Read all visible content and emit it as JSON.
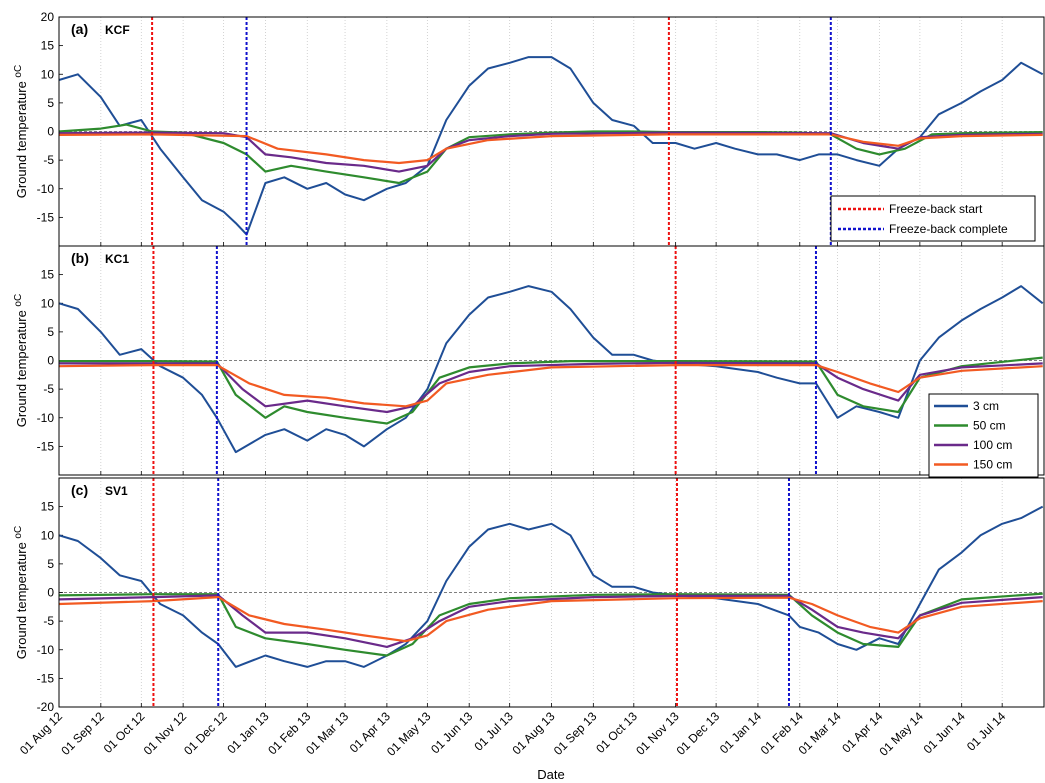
{
  "xlabel": "Date",
  "ylabel": "Ground temperature",
  "ylabel_unit": "oC",
  "x_tick_labels": [
    "01 Aug 12",
    "01 Sep 12",
    "01 Oct 12",
    "01 Nov 12",
    "01 Dec 12",
    "01 Jan 13",
    "01 Feb 13",
    "01 Mar 13",
    "01 Apr 13",
    "01 May 13",
    "01 Jun 13",
    "01 Jul 13",
    "01 Aug 13",
    "01 Sep 13",
    "01 Oct 13",
    "01 Nov 13",
    "01 Dec 13",
    "01 Jan 14",
    "01 Feb 14",
    "01 Mar 14",
    "01 Apr 14",
    "01 May 14",
    "01 Jun 14",
    "01 Jul 14"
  ],
  "legends": {
    "freeze": [
      "Freeze-back start",
      "Freeze-back complete"
    ],
    "depth": [
      "3 cm",
      "50 cm",
      "100 cm",
      "150 cm"
    ]
  },
  "colors": {
    "d3": "#1f4e96",
    "d50": "#2e8b2e",
    "d100": "#6a2a8a",
    "d150": "#f25a22",
    "start": "#ee1111",
    "complete": "#1111cc"
  },
  "chart_data": [
    {
      "type": "line",
      "panel": "(a)",
      "site": "KCF",
      "x_unit": "date",
      "ylim": [
        -20,
        20
      ],
      "yticks": [
        -15,
        -10,
        -5,
        0,
        5,
        10,
        15,
        20
      ],
      "freeze_back_start": [
        "2012-10-09",
        "2013-10-27"
      ],
      "freeze_back_complete": [
        "2012-12-18",
        "2014-02-24"
      ],
      "series": [
        {
          "name": "3 cm",
          "x": [
            "2012-08-01",
            "2012-08-15",
            "2012-09-01",
            "2012-09-15",
            "2012-10-01",
            "2012-10-15",
            "2012-11-01",
            "2012-11-15",
            "2012-12-01",
            "2012-12-10",
            "2012-12-18",
            "2013-01-01",
            "2013-01-15",
            "2013-02-01",
            "2013-02-15",
            "2013-03-01",
            "2013-03-15",
            "2013-04-01",
            "2013-04-15",
            "2013-05-01",
            "2013-05-15",
            "2013-06-01",
            "2013-06-15",
            "2013-07-01",
            "2013-07-15",
            "2013-08-01",
            "2013-08-15",
            "2013-09-01",
            "2013-09-15",
            "2013-10-01",
            "2013-10-15",
            "2013-11-01",
            "2013-11-15",
            "2013-12-01",
            "2013-12-15",
            "2014-01-01",
            "2014-01-15",
            "2014-02-01",
            "2014-02-15",
            "2014-03-01",
            "2014-03-15",
            "2014-04-01",
            "2014-04-15",
            "2014-05-01",
            "2014-05-15",
            "2014-06-01",
            "2014-06-15",
            "2014-07-01",
            "2014-07-15",
            "2014-07-31"
          ],
          "y": [
            9,
            10,
            6,
            1,
            2,
            -3,
            -8,
            -12,
            -14,
            -16,
            -18,
            -9,
            -8,
            -10,
            -9,
            -11,
            -12,
            -10,
            -9,
            -6,
            2,
            8,
            11,
            12,
            13,
            13,
            11,
            5,
            2,
            1,
            -2,
            -2,
            -3,
            -2,
            -3,
            -4,
            -4,
            -5,
            -4,
            -4,
            -5,
            -6,
            -3,
            -1,
            3,
            5,
            7,
            9,
            12,
            10
          ]
        },
        {
          "name": "50 cm",
          "x": [
            "2012-08-01",
            "2012-09-01",
            "2012-09-20",
            "2012-10-09",
            "2012-11-01",
            "2012-12-01",
            "2012-12-18",
            "2013-01-01",
            "2013-01-20",
            "2013-02-15",
            "2013-03-15",
            "2013-04-10",
            "2013-05-01",
            "2013-05-15",
            "2013-06-01",
            "2013-07-01",
            "2013-08-01",
            "2013-09-01",
            "2013-10-01",
            "2013-10-27",
            "2013-12-01",
            "2014-01-01",
            "2014-02-01",
            "2014-02-24",
            "2014-03-15",
            "2014-04-01",
            "2014-04-20",
            "2014-05-10",
            "2014-06-01",
            "2014-07-01",
            "2014-07-31"
          ],
          "y": [
            0,
            0.5,
            1.2,
            0,
            -0.2,
            -2,
            -4,
            -7,
            -6,
            -7,
            -8,
            -9,
            -7,
            -3,
            -1,
            -0.5,
            -0.2,
            0,
            0,
            -0.1,
            -0.1,
            -0.1,
            -0.2,
            -0.5,
            -3,
            -4,
            -3,
            -0.5,
            -0.3,
            -0.2,
            -0.1
          ]
        },
        {
          "name": "100 cm",
          "x": [
            "2012-08-01",
            "2012-10-09",
            "2012-12-01",
            "2012-12-18",
            "2013-01-01",
            "2013-01-20",
            "2013-02-15",
            "2013-03-15",
            "2013-04-10",
            "2013-05-01",
            "2013-05-15",
            "2013-06-01",
            "2013-07-01",
            "2013-08-01",
            "2013-10-27",
            "2014-02-24",
            "2014-03-20",
            "2014-04-15",
            "2014-05-01",
            "2014-06-01",
            "2014-07-31"
          ],
          "y": [
            -0.3,
            -0.2,
            -0.3,
            -1,
            -4,
            -4.5,
            -5.5,
            -6,
            -7,
            -6,
            -3,
            -1.5,
            -0.8,
            -0.4,
            -0.2,
            -0.3,
            -2,
            -3,
            -1,
            -0.6,
            -0.4
          ]
        },
        {
          "name": "150 cm",
          "x": [
            "2012-08-01",
            "2012-10-09",
            "2012-12-18",
            "2013-01-10",
            "2013-02-15",
            "2013-03-15",
            "2013-04-10",
            "2013-05-01",
            "2013-05-15",
            "2013-06-15",
            "2013-08-01",
            "2013-10-27",
            "2014-02-24",
            "2014-03-20",
            "2014-04-15",
            "2014-05-01",
            "2014-06-01",
            "2014-07-31"
          ],
          "y": [
            -0.6,
            -0.5,
            -0.8,
            -3,
            -4,
            -5,
            -5.5,
            -5,
            -3,
            -1.5,
            -0.8,
            -0.5,
            -0.5,
            -1.8,
            -2.5,
            -1.2,
            -0.8,
            -0.6
          ]
        }
      ]
    },
    {
      "type": "line",
      "panel": "(b)",
      "site": "KC1",
      "x_unit": "date",
      "ylim": [
        -20,
        20
      ],
      "yticks": [
        -15,
        -10,
        -5,
        0,
        5,
        10,
        15
      ],
      "freeze_back_start": [
        "2012-10-10",
        "2013-11-01"
      ],
      "freeze_back_complete": [
        "2012-11-26",
        "2014-02-13"
      ],
      "series": [
        {
          "name": "3 cm",
          "x": [
            "2012-08-01",
            "2012-08-15",
            "2012-09-01",
            "2012-09-15",
            "2012-10-01",
            "2012-10-15",
            "2012-11-01",
            "2012-11-15",
            "2012-11-26",
            "2012-12-10",
            "2013-01-01",
            "2013-01-15",
            "2013-02-01",
            "2013-02-15",
            "2013-03-01",
            "2013-03-15",
            "2013-04-01",
            "2013-04-15",
            "2013-05-01",
            "2013-05-15",
            "2013-06-01",
            "2013-06-15",
            "2013-07-01",
            "2013-07-15",
            "2013-08-01",
            "2013-08-15",
            "2013-09-01",
            "2013-09-15",
            "2013-10-01",
            "2013-10-15",
            "2013-11-01",
            "2013-12-01",
            "2014-01-01",
            "2014-01-15",
            "2014-02-01",
            "2014-02-13",
            "2014-03-01",
            "2014-03-15",
            "2014-04-01",
            "2014-04-15",
            "2014-05-01",
            "2014-05-15",
            "2014-06-01",
            "2014-06-15",
            "2014-07-01",
            "2014-07-15",
            "2014-07-31"
          ],
          "y": [
            10,
            9,
            5,
            1,
            2,
            -1,
            -3,
            -6,
            -10,
            -16,
            -13,
            -12,
            -14,
            -12,
            -13,
            -15,
            -12,
            -10,
            -5,
            3,
            8,
            11,
            12,
            13,
            12,
            9,
            4,
            1,
            1,
            0,
            -0.5,
            -1,
            -2,
            -3,
            -4,
            -4,
            -10,
            -8,
            -9,
            -10,
            0,
            4,
            7,
            9,
            11,
            13,
            10
          ]
        },
        {
          "name": "50 cm",
          "x": [
            "2012-08-01",
            "2012-10-10",
            "2012-11-26",
            "2012-12-10",
            "2013-01-01",
            "2013-01-15",
            "2013-02-01",
            "2013-03-01",
            "2013-04-01",
            "2013-04-20",
            "2013-05-10",
            "2013-06-01",
            "2013-07-01",
            "2013-08-15",
            "2013-11-01",
            "2014-02-13",
            "2014-03-01",
            "2014-03-20",
            "2014-04-15",
            "2014-05-01",
            "2014-06-01",
            "2014-07-31"
          ],
          "y": [
            -0.1,
            -0.1,
            -0.2,
            -6,
            -10,
            -8,
            -9,
            -10,
            -11,
            -9,
            -3,
            -1.2,
            -0.5,
            -0.1,
            -0.1,
            -0.2,
            -6,
            -8,
            -9,
            -3,
            -1,
            0.5
          ]
        },
        {
          "name": "100 cm",
          "x": [
            "2012-08-01",
            "2012-10-10",
            "2012-11-26",
            "2012-12-15",
            "2013-01-01",
            "2013-02-01",
            "2013-03-01",
            "2013-04-01",
            "2013-04-20",
            "2013-05-10",
            "2013-06-01",
            "2013-07-01",
            "2013-09-01",
            "2013-11-01",
            "2014-02-13",
            "2014-03-01",
            "2014-03-20",
            "2014-04-15",
            "2014-05-01",
            "2014-06-01",
            "2014-07-31"
          ],
          "y": [
            -0.5,
            -0.5,
            -0.5,
            -5,
            -8,
            -7,
            -8,
            -9,
            -8,
            -4,
            -2,
            -1,
            -0.6,
            -0.4,
            -0.5,
            -3,
            -5,
            -7,
            -2.5,
            -1.2,
            -0.5
          ]
        },
        {
          "name": "150 cm",
          "x": [
            "2012-08-01",
            "2012-10-10",
            "2012-11-26",
            "2012-12-20",
            "2013-01-15",
            "2013-02-15",
            "2013-03-15",
            "2013-04-15",
            "2013-05-01",
            "2013-05-15",
            "2013-06-15",
            "2013-08-01",
            "2013-11-01",
            "2014-02-13",
            "2014-03-01",
            "2014-03-25",
            "2014-04-15",
            "2014-05-01",
            "2014-06-01",
            "2014-07-31"
          ],
          "y": [
            -1,
            -0.8,
            -0.8,
            -4,
            -6,
            -6.5,
            -7.5,
            -8,
            -7,
            -4,
            -2.5,
            -1.2,
            -0.8,
            -0.8,
            -2,
            -4,
            -5.5,
            -3,
            -1.8,
            -1
          ]
        }
      ]
    },
    {
      "type": "line",
      "panel": "(c)",
      "site": "SV1",
      "x_unit": "date",
      "ylim": [
        -20,
        20
      ],
      "yticks": [
        -20,
        -15,
        -10,
        -5,
        0,
        5,
        10,
        15
      ],
      "freeze_back_start": [
        "2012-10-10",
        "2013-11-02"
      ],
      "freeze_back_complete": [
        "2012-11-27",
        "2014-01-24"
      ],
      "series": [
        {
          "name": "3 cm",
          "x": [
            "2012-08-01",
            "2012-08-15",
            "2012-09-01",
            "2012-09-15",
            "2012-10-01",
            "2012-10-15",
            "2012-11-01",
            "2012-11-15",
            "2012-11-27",
            "2012-12-10",
            "2013-01-01",
            "2013-01-15",
            "2013-02-01",
            "2013-02-15",
            "2013-03-01",
            "2013-03-15",
            "2013-04-01",
            "2013-04-15",
            "2013-05-01",
            "2013-05-15",
            "2013-06-01",
            "2013-06-15",
            "2013-07-01",
            "2013-07-15",
            "2013-08-01",
            "2013-08-15",
            "2013-09-01",
            "2013-09-15",
            "2013-10-01",
            "2013-10-15",
            "2013-11-02",
            "2013-12-01",
            "2014-01-01",
            "2014-01-24",
            "2014-02-01",
            "2014-02-15",
            "2014-03-01",
            "2014-03-15",
            "2014-04-01",
            "2014-04-15",
            "2014-05-01",
            "2014-05-15",
            "2014-06-01",
            "2014-06-15",
            "2014-07-01",
            "2014-07-15",
            "2014-07-31"
          ],
          "y": [
            10,
            9,
            6,
            3,
            2,
            -2,
            -4,
            -7,
            -9,
            -13,
            -11,
            -12,
            -13,
            -12,
            -12,
            -13,
            -11,
            -9,
            -5,
            2,
            8,
            11,
            12,
            11,
            12,
            10,
            3,
            1,
            1,
            0,
            -0.5,
            -1,
            -2,
            -4,
            -6,
            -7,
            -9,
            -10,
            -8,
            -9,
            -2,
            4,
            7,
            10,
            12,
            13,
            15
          ]
        },
        {
          "name": "50 cm",
          "x": [
            "2012-08-01",
            "2012-10-10",
            "2012-11-27",
            "2012-12-10",
            "2013-01-01",
            "2013-02-01",
            "2013-03-01",
            "2013-04-01",
            "2013-04-20",
            "2013-05-10",
            "2013-06-01",
            "2013-07-01",
            "2013-09-01",
            "2013-11-02",
            "2014-01-24",
            "2014-02-10",
            "2014-03-01",
            "2014-03-20",
            "2014-04-15",
            "2014-05-01",
            "2014-06-01",
            "2014-07-31"
          ],
          "y": [
            -0.5,
            -0.3,
            -0.3,
            -6,
            -8,
            -9,
            -10,
            -11,
            -9,
            -4,
            -2,
            -1,
            -0.4,
            -0.3,
            -0.4,
            -4,
            -7,
            -9,
            -9.5,
            -4,
            -1.2,
            -0.2
          ]
        },
        {
          "name": "100 cm",
          "x": [
            "2012-08-01",
            "2012-10-10",
            "2012-11-27",
            "2012-12-15",
            "2013-01-01",
            "2013-02-01",
            "2013-03-01",
            "2013-04-01",
            "2013-04-20",
            "2013-05-10",
            "2013-06-01",
            "2013-07-01",
            "2013-09-01",
            "2013-11-02",
            "2014-01-24",
            "2014-02-10",
            "2014-03-01",
            "2014-03-20",
            "2014-04-15",
            "2014-05-01",
            "2014-06-01",
            "2014-07-31"
          ],
          "y": [
            -1.2,
            -0.8,
            -0.5,
            -4,
            -7,
            -7,
            -8,
            -9.5,
            -8,
            -5,
            -2.5,
            -1.5,
            -0.8,
            -0.6,
            -0.6,
            -3,
            -6,
            -7,
            -8,
            -4,
            -1.8,
            -0.8
          ]
        },
        {
          "name": "150 cm",
          "x": [
            "2012-08-01",
            "2012-10-10",
            "2012-11-27",
            "2012-12-20",
            "2013-01-15",
            "2013-02-15",
            "2013-03-15",
            "2013-04-15",
            "2013-05-01",
            "2013-05-15",
            "2013-06-15",
            "2013-08-01",
            "2013-11-02",
            "2014-01-24",
            "2014-02-10",
            "2014-03-01",
            "2014-03-25",
            "2014-04-15",
            "2014-05-01",
            "2014-06-01",
            "2014-07-31"
          ],
          "y": [
            -2,
            -1.5,
            -0.8,
            -4,
            -5.5,
            -6.5,
            -7.5,
            -8.5,
            -7.5,
            -5,
            -3,
            -1.5,
            -1,
            -0.9,
            -2,
            -4,
            -6,
            -7,
            -4.5,
            -2.5,
            -1.5
          ]
        }
      ]
    }
  ]
}
